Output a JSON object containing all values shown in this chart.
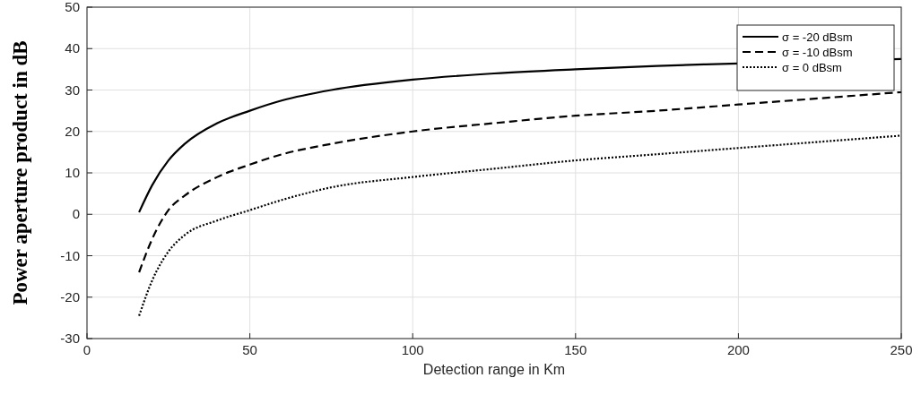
{
  "chart_data": {
    "type": "line",
    "xlabel": "Detection range in Km",
    "ylabel": "Power aperture product in dB",
    "xlim": [
      0,
      250
    ],
    "xticks": [
      0,
      50,
      100,
      150,
      200,
      250
    ],
    "ylim": [
      -30,
      50
    ],
    "yticks": [
      -30,
      -20,
      -10,
      0,
      10,
      20,
      30,
      40,
      50
    ],
    "grid": true,
    "legend": "top right",
    "x": [
      16,
      20,
      25,
      30,
      40,
      50,
      60,
      75,
      100,
      125,
      150,
      175,
      200,
      225,
      250
    ],
    "series": [
      {
        "name": "σ = -20 dBsm",
        "color": "#000000",
        "line_style": "solid",
        "x": [
          16,
          20,
          25,
          30,
          40,
          50,
          60,
          75,
          100,
          125,
          150,
          175,
          190,
          250
        ],
        "values": [
          0.5,
          7,
          13,
          17,
          22,
          25,
          27.5,
          30,
          32.5,
          34,
          35,
          35.8,
          36.2,
          37.5
        ]
      },
      {
        "name": "σ = -10 dBsm",
        "color": "#000000",
        "line_style": "dashed",
        "values": [
          -14,
          -6,
          1,
          4.5,
          9,
          12,
          14.5,
          17,
          20,
          22,
          23.8,
          25,
          26.5,
          28,
          29.5
        ]
      },
      {
        "name": "σ = 0 dBsm",
        "color": "#000000",
        "line_style": "dotted",
        "values": [
          -24.5,
          -16,
          -9,
          -5,
          -1.5,
          1,
          3.5,
          6.5,
          9,
          11,
          13,
          14.5,
          16,
          17.5,
          19
        ]
      }
    ]
  }
}
